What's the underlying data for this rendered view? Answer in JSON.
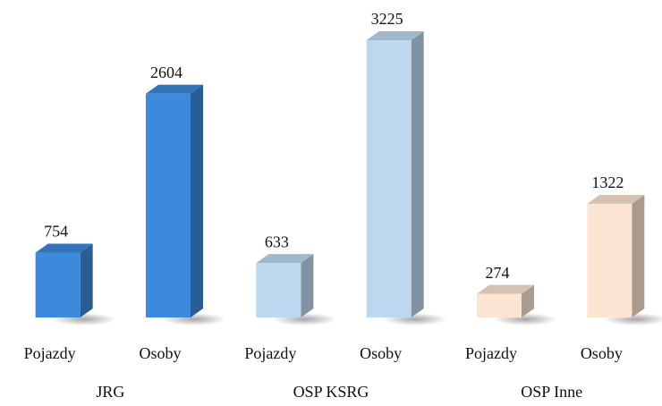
{
  "chart_data": {
    "type": "bar",
    "categories": [
      "Pojazdy",
      "Osoby",
      "Pojazdy",
      "Osoby",
      "Pojazdy",
      "Osoby"
    ],
    "groups": [
      "JRG",
      "OSP KSRG",
      "OSP Inne"
    ],
    "values": [
      754,
      2604,
      633,
      3225,
      274,
      1322
    ],
    "colors": [
      "#3d89dc",
      "#3d89dc",
      "#bdd7ef",
      "#bdd7ef",
      "#fbe4d2",
      "#fbe4d2"
    ]
  }
}
